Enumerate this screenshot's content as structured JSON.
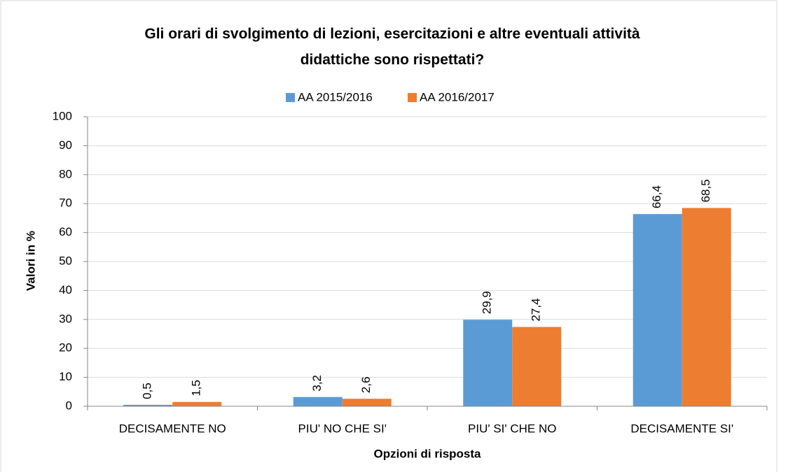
{
  "chart_data": {
    "type": "bar",
    "title": "Gli orari di svolgimento di lezioni, esercitazioni e altre eventuali attività didattiche sono rispettati?",
    "x_label": "Opzioni di risposta",
    "y_label": "Valori in %",
    "categories": [
      "DECISAMENTE NO",
      "PIU' NO CHE SI'",
      "PIU' SI' CHE NO",
      "DECISAMENTE SI'"
    ],
    "series": [
      {
        "name": "AA 2015/2016",
        "color": "#5b9bd5",
        "values": [
          0.5,
          3.2,
          29.9,
          66.4
        ],
        "value_labels": [
          "0,5",
          "3,2",
          "29,9",
          "66,4"
        ]
      },
      {
        "name": "AA 2016/2017",
        "color": "#ed7d31",
        "values": [
          1.5,
          2.6,
          27.4,
          68.5
        ],
        "value_labels": [
          "1,5",
          "2,6",
          "27,4",
          "68,5"
        ]
      }
    ],
    "ylim": [
      0,
      100
    ],
    "yticks": [
      0,
      10,
      20,
      30,
      40,
      50,
      60,
      70,
      80,
      90,
      100
    ],
    "grid": true,
    "legend": "top"
  }
}
